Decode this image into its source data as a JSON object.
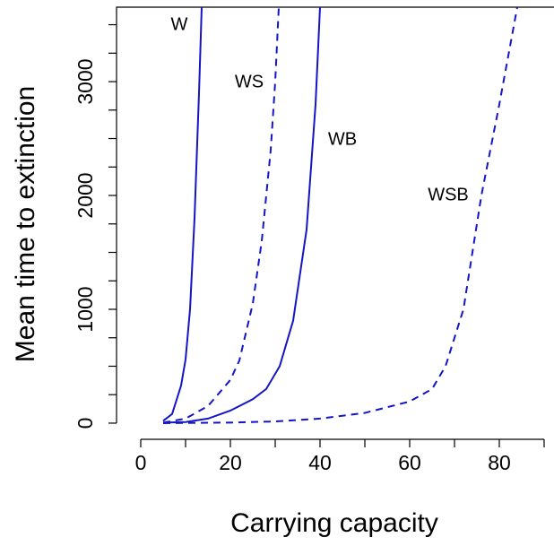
{
  "chart_data": {
    "type": "line",
    "xlabel": "Carrying capacity",
    "ylabel": "Mean time to extinction",
    "xlim": [
      -5.4,
      92.2
    ],
    "ylim": [
      -142,
      3654
    ],
    "xticks": [
      0,
      20,
      40,
      60,
      80
    ],
    "xminorticks": [
      10,
      30,
      50,
      70,
      90
    ],
    "yticks": [
      0,
      1000,
      2000,
      3000
    ],
    "yminorticks": [
      250,
      500,
      750,
      1250,
      1500,
      1750,
      2250,
      2500,
      2750,
      3250,
      3500
    ],
    "series": [
      {
        "name": "W",
        "color": "#1414c8",
        "dash": false,
        "x": [
          5,
          7,
          9,
          10,
          11,
          12,
          13,
          13.6
        ],
        "values": [
          20,
          80,
          330,
          560,
          1000,
          1800,
          2900,
          3654
        ]
      },
      {
        "name": "WS",
        "color": "#1414c8",
        "dash": true,
        "x": [
          5,
          10,
          15,
          20,
          22,
          25,
          27,
          29,
          30,
          30.8
        ],
        "values": [
          5,
          40,
          150,
          380,
          550,
          1050,
          1600,
          2400,
          3000,
          3654
        ]
      },
      {
        "name": "WB",
        "color": "#1414c8",
        "dash": false,
        "x": [
          5,
          10,
          15,
          20,
          25,
          28,
          31,
          34,
          37,
          39,
          40
        ],
        "values": [
          5,
          10,
          40,
          110,
          210,
          300,
          500,
          900,
          1700,
          2800,
          3654
        ]
      },
      {
        "name": "WSB",
        "color": "#1414c8",
        "dash": true,
        "x": [
          5,
          20,
          30,
          40,
          50,
          60,
          65,
          68,
          72,
          76,
          80,
          84
        ],
        "values": [
          0,
          5,
          15,
          40,
          90,
          190,
          300,
          500,
          1000,
          2000,
          2800,
          3654
        ]
      }
    ]
  }
}
